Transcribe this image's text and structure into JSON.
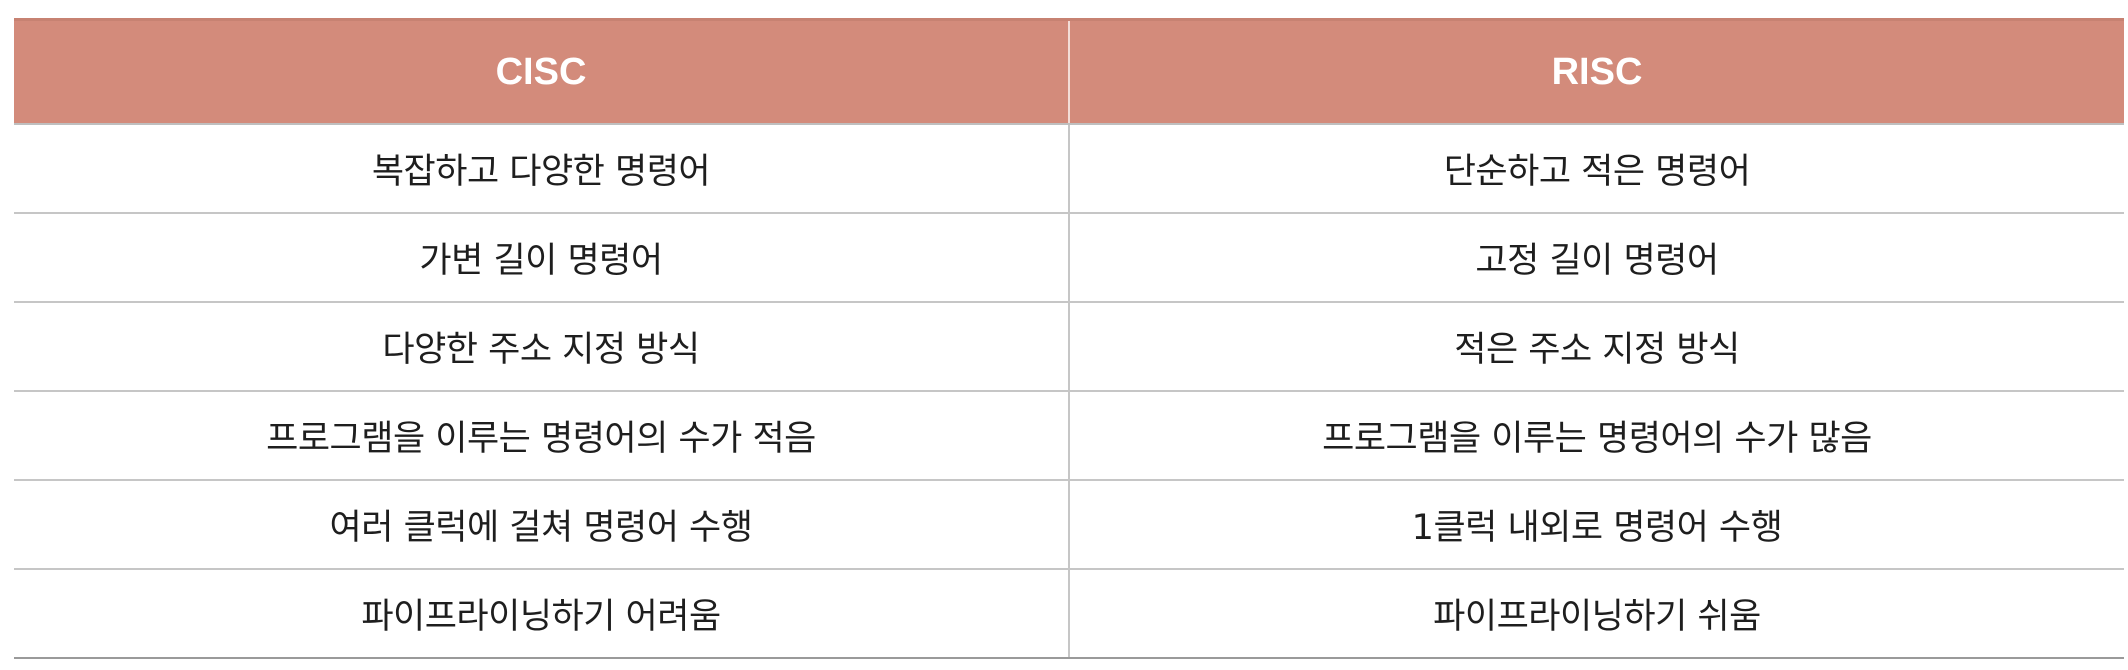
{
  "table": {
    "headers": [
      "CISC",
      "RISC"
    ],
    "header_color": "#d38b7b",
    "rows": [
      [
        "복잡하고 다양한 명령어",
        "단순하고 적은 명령어"
      ],
      [
        "가변 길이 명령어",
        "고정 길이 명령어"
      ],
      [
        "다양한 주소 지정 방식",
        "적은 주소 지정 방식"
      ],
      [
        "프로그램을 이루는 명령어의 수가 적음",
        "프로그램을 이루는 명령어의 수가 많음"
      ],
      [
        "여러 클럭에 걸쳐 명령어 수행",
        "1클럭 내외로 명령어 수행"
      ],
      [
        "파이프라이닝하기 어려움",
        "파이프라이닝하기 쉬움"
      ]
    ]
  }
}
